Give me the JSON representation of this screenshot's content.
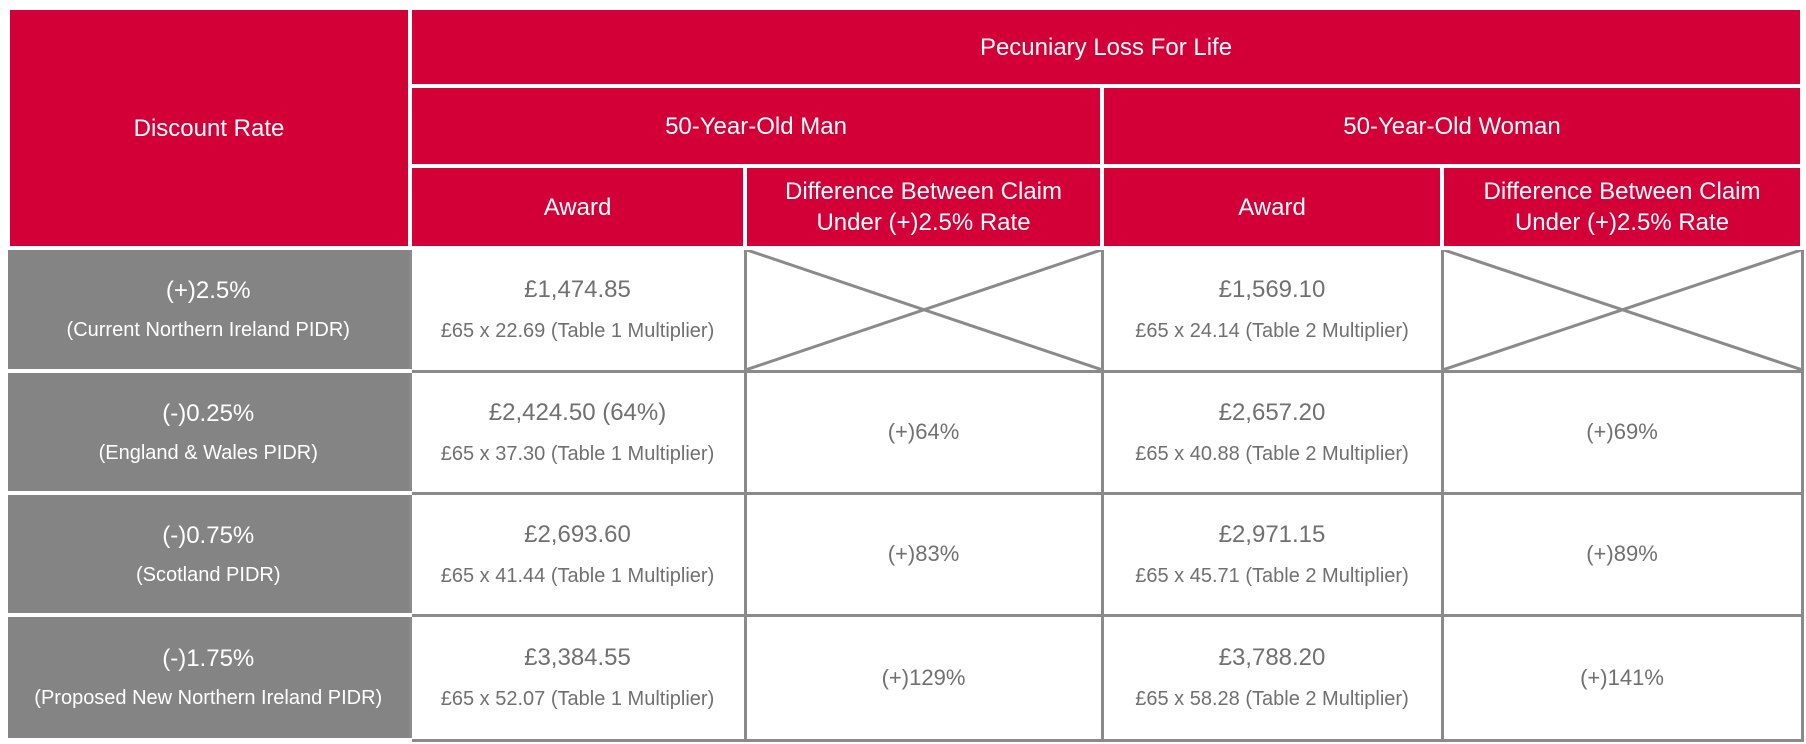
{
  "header": {
    "discount_rate": "Discount Rate",
    "group": "Pecuniary Loss For Life",
    "man": "50-Year-Old Man",
    "woman": "50-Year-Old Woman",
    "award": "Award",
    "difference_line1": "Difference Between Claim",
    "difference_line2": "Under (+)2.5% Rate"
  },
  "colors": {
    "header_red": "#d30038",
    "rate_grey": "#848484",
    "text_grey": "#707070"
  },
  "chart_data": {
    "type": "table",
    "columns": [
      "Discount Rate",
      "50-Year-Old Man Award",
      "50-Year-Old Man Difference Between Claim Under (+)2.5% Rate",
      "50-Year-Old Woman Award",
      "50-Year-Old Woman Difference Between Claim Under (+)2.5% Rate"
    ],
    "rows": [
      {
        "rate": "(+)2.5%",
        "rate_note": "(Current Northern Ireland PIDR)",
        "man_award": "£1,474.85",
        "man_calc": "£65 x 22.69 (Table 1 Multiplier)",
        "man_diff": "",
        "woman_award": "£1,569.10",
        "woman_calc": "£65 x 24.14 (Table 2 Multiplier)",
        "woman_diff": ""
      },
      {
        "rate": "(-)0.25%",
        "rate_note": "(England & Wales PIDR)",
        "man_award": "£2,424.50 (64%)",
        "man_calc": "£65 x 37.30 (Table 1 Multiplier)",
        "man_diff": "(+)64%",
        "woman_award": "£2,657.20",
        "woman_calc": "£65 x 40.88 (Table 2 Multiplier)",
        "woman_diff": "(+)69%"
      },
      {
        "rate": "(-)0.75%",
        "rate_note": "(Scotland PIDR)",
        "man_award": "£2,693.60",
        "man_calc": "£65 x 41.44 (Table 1 Multiplier)",
        "man_diff": "(+)83%",
        "woman_award": "£2,971.15",
        "woman_calc": "£65 x 45.71 (Table 2 Multiplier)",
        "woman_diff": "(+)89%"
      },
      {
        "rate": "(-)1.75%",
        "rate_note": "(Proposed New Northern Ireland PIDR)",
        "man_award": "£3,384.55",
        "man_calc": "£65 x 52.07 (Table 1 Multiplier)",
        "man_diff": "(+)129%",
        "woman_award": "£3,788.20",
        "woman_calc": "£65 x 58.28 (Table 2 Multiplier)",
        "woman_diff": "(+)141%"
      }
    ]
  }
}
